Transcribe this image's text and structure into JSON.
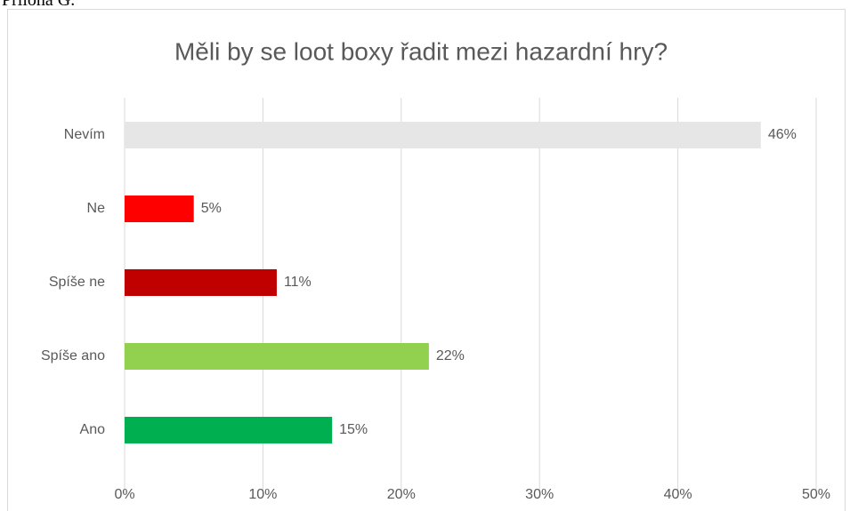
{
  "caption": "Příloha G.",
  "chart_data": {
    "type": "bar",
    "orientation": "horizontal",
    "title": "Měli by se loot boxy řadit mezi hazardní hry?",
    "categories": [
      "Nevím",
      "Ne",
      "Spíše ne",
      "Spíše ano",
      "Ano"
    ],
    "values": [
      46,
      5,
      11,
      22,
      15
    ],
    "value_labels": [
      "46%",
      "5%",
      "11%",
      "22%",
      "15%"
    ],
    "colors": [
      "#e7e6e6",
      "#ff0000",
      "#c00000",
      "#92d050",
      "#00b050"
    ],
    "xlim": [
      0,
      50
    ],
    "xticks": [
      {
        "value": 0,
        "label": "0%"
      },
      {
        "value": 10,
        "label": "10%"
      },
      {
        "value": 20,
        "label": "20%"
      },
      {
        "value": 30,
        "label": "30%"
      },
      {
        "value": 40,
        "label": "40%"
      },
      {
        "value": 50,
        "label": "50%"
      }
    ],
    "grid": true
  }
}
